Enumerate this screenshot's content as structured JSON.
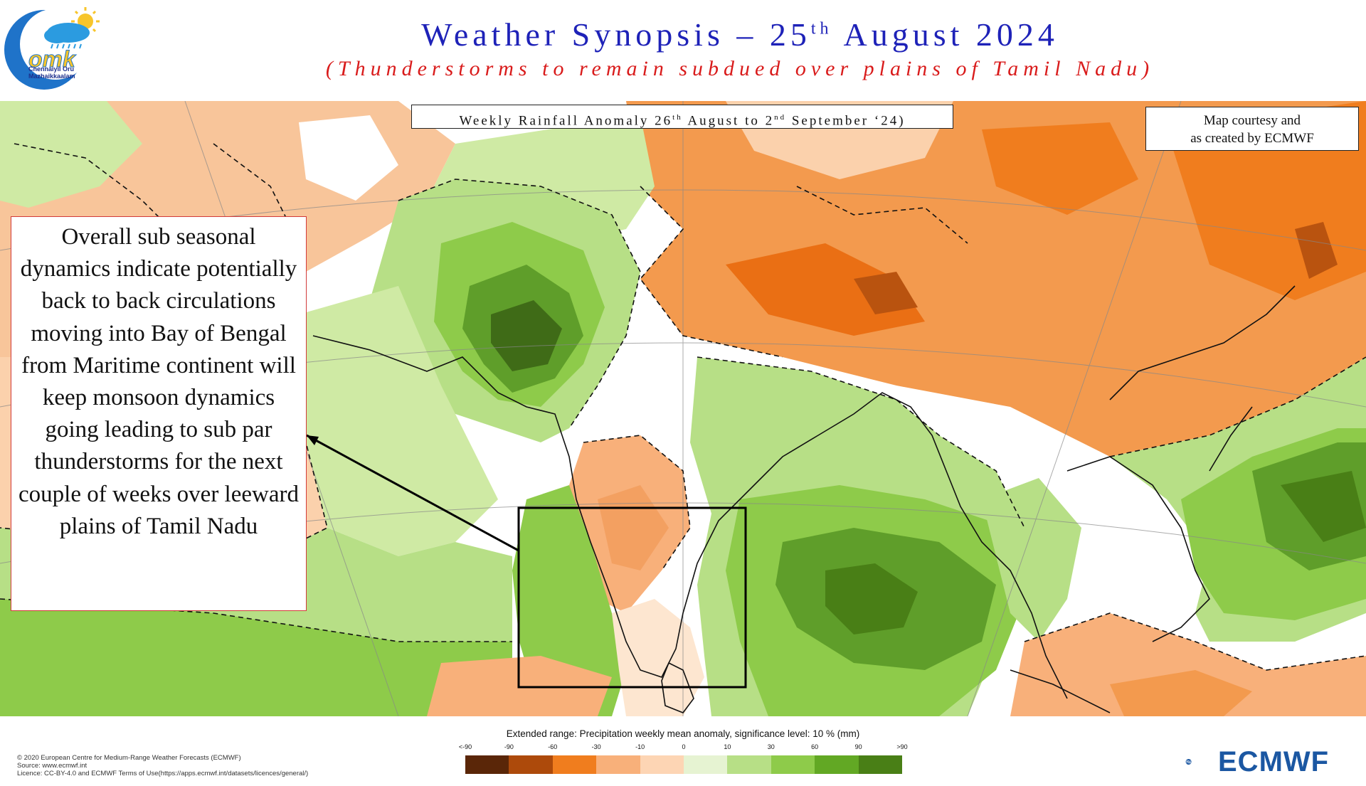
{
  "header": {
    "logo_label": "Chennaiyil Oru Mazhaikkaalam",
    "logo_text": "omk",
    "title_main": "Weather Synopsis – 25",
    "title_sup": "th",
    "title_tail": " August 2024",
    "subtitle": "(Thunderstorms to remain subdued over plains of Tamil Nadu)"
  },
  "map": {
    "box_title_a": "Weekly Rainfall Anomaly 26",
    "box_title_sup1": "th",
    "box_title_b": " August to 2",
    "box_title_sup2": "nd",
    "box_title_c": " September ‘24)",
    "courtesy_line1": "Map courtesy and",
    "courtesy_line2": "as created by ECMWF",
    "highlight": "Tamil Nadu / Sri Lanka region",
    "colors": {
      "below_strong": "#8b3d00",
      "below": "#f08a2f",
      "below_light": "#f8b982",
      "near_zero": "#ffffff",
      "above_light": "#cfeaa4",
      "above": "#96cd52",
      "above_strong": "#5b9a26",
      "above_darkest": "#3f6b17"
    }
  },
  "callout": {
    "text": "Overall sub seasonal dynamics indicate potentially back to back circulations moving into Bay of Bengal from Maritime continent will keep monsoon dynamics going leading to sub par thunderstorms for the next couple of weeks over leeward plains of Tamil Nadu"
  },
  "legend": {
    "title": "Extended range: Precipitation weekly mean anomaly, significance level: 10 % (mm)",
    "labels": [
      "<-90",
      "-90",
      "-60",
      "-30",
      "-10",
      "0",
      "10",
      "30",
      "60",
      "90",
      ">90"
    ],
    "colors": [
      "#5a2608",
      "#ad4a0b",
      "#f07d1e",
      "#f8b07a",
      "#fdd5b4",
      "#e6f3d2",
      "#b7df86",
      "#8ecb4a",
      "#62a824",
      "#497f16"
    ]
  },
  "footer": {
    "copyright_line1": "© 2020 European Centre for Medium-Range Weather Forecasts (ECMWF)",
    "copyright_line2": "Source: www.ecmwf.int",
    "copyright_line3": "Licence: CC-BY-4.0 and ECMWF Terms of Use(https://apps.ecmwf.int/datasets/licences/general/)",
    "brand": "ECMWF"
  }
}
